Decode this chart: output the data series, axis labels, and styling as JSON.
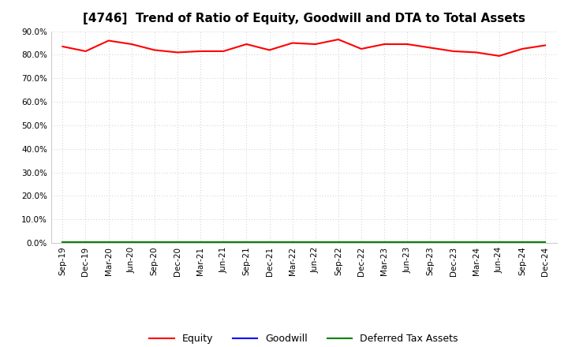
{
  "title": "[4746]  Trend of Ratio of Equity, Goodwill and DTA to Total Assets",
  "x_labels": [
    "Sep-19",
    "Dec-19",
    "Mar-20",
    "Jun-20",
    "Sep-20",
    "Dec-20",
    "Mar-21",
    "Jun-21",
    "Sep-21",
    "Dec-21",
    "Mar-22",
    "Jun-22",
    "Sep-22",
    "Dec-22",
    "Mar-23",
    "Jun-23",
    "Sep-23",
    "Dec-23",
    "Mar-24",
    "Jun-24",
    "Sep-24",
    "Dec-24"
  ],
  "equity": [
    83.5,
    81.5,
    86.0,
    84.5,
    82.0,
    81.0,
    81.5,
    81.5,
    84.5,
    82.0,
    85.0,
    84.5,
    86.5,
    82.5,
    84.5,
    84.5,
    83.0,
    81.5,
    81.0,
    79.5,
    82.5,
    84.0
  ],
  "goodwill": [
    0.0,
    0.0,
    0.0,
    0.0,
    0.0,
    0.0,
    0.0,
    0.0,
    0.0,
    0.0,
    0.0,
    0.0,
    0.0,
    0.0,
    0.0,
    0.0,
    0.0,
    0.0,
    0.0,
    0.0,
    0.0,
    0.0
  ],
  "dta": [
    0.3,
    0.3,
    0.3,
    0.3,
    0.3,
    0.3,
    0.3,
    0.3,
    0.3,
    0.3,
    0.3,
    0.3,
    0.3,
    0.3,
    0.3,
    0.3,
    0.3,
    0.3,
    0.3,
    0.3,
    0.3,
    0.3
  ],
  "equity_color": "#FF0000",
  "goodwill_color": "#0000FF",
  "dta_color": "#008000",
  "ylim": [
    0,
    90
  ],
  "yticks": [
    0,
    10,
    20,
    30,
    40,
    50,
    60,
    70,
    80,
    90
  ],
  "background_color": "#FFFFFF",
  "grid_color": "#BBBBBB",
  "title_fontsize": 11,
  "tick_fontsize": 7.5,
  "legend_labels": [
    "Equity",
    "Goodwill",
    "Deferred Tax Assets"
  ]
}
